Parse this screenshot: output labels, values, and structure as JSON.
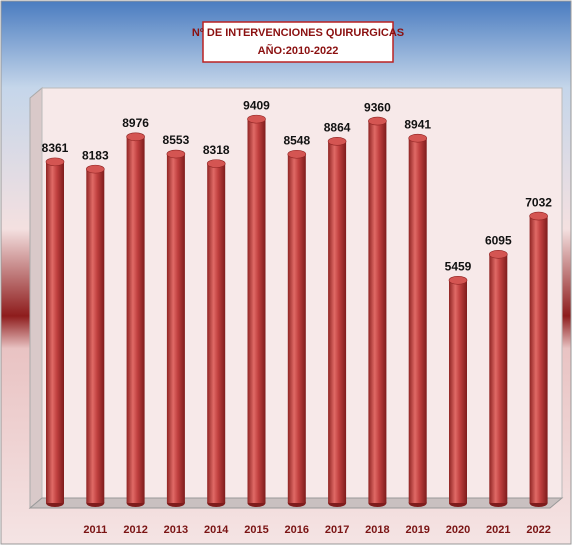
{
  "chart_data": {
    "type": "bar",
    "title": "Nº DE INTERVENCIONES QUIRURGICAS",
    "subtitle": "AÑO:2010-2022",
    "categories": [
      null,
      "2011",
      "2012",
      "2013",
      "2014",
      "2015",
      "2016",
      "2017",
      "2018",
      "2019",
      "2020",
      "2021",
      "2022"
    ],
    "values": [
      8361,
      8183,
      8976,
      8553,
      8318,
      9409,
      8548,
      8864,
      9360,
      8941,
      5459,
      6095,
      7032
    ],
    "color": "#c0403f",
    "ylim": [
      0,
      10000
    ]
  }
}
